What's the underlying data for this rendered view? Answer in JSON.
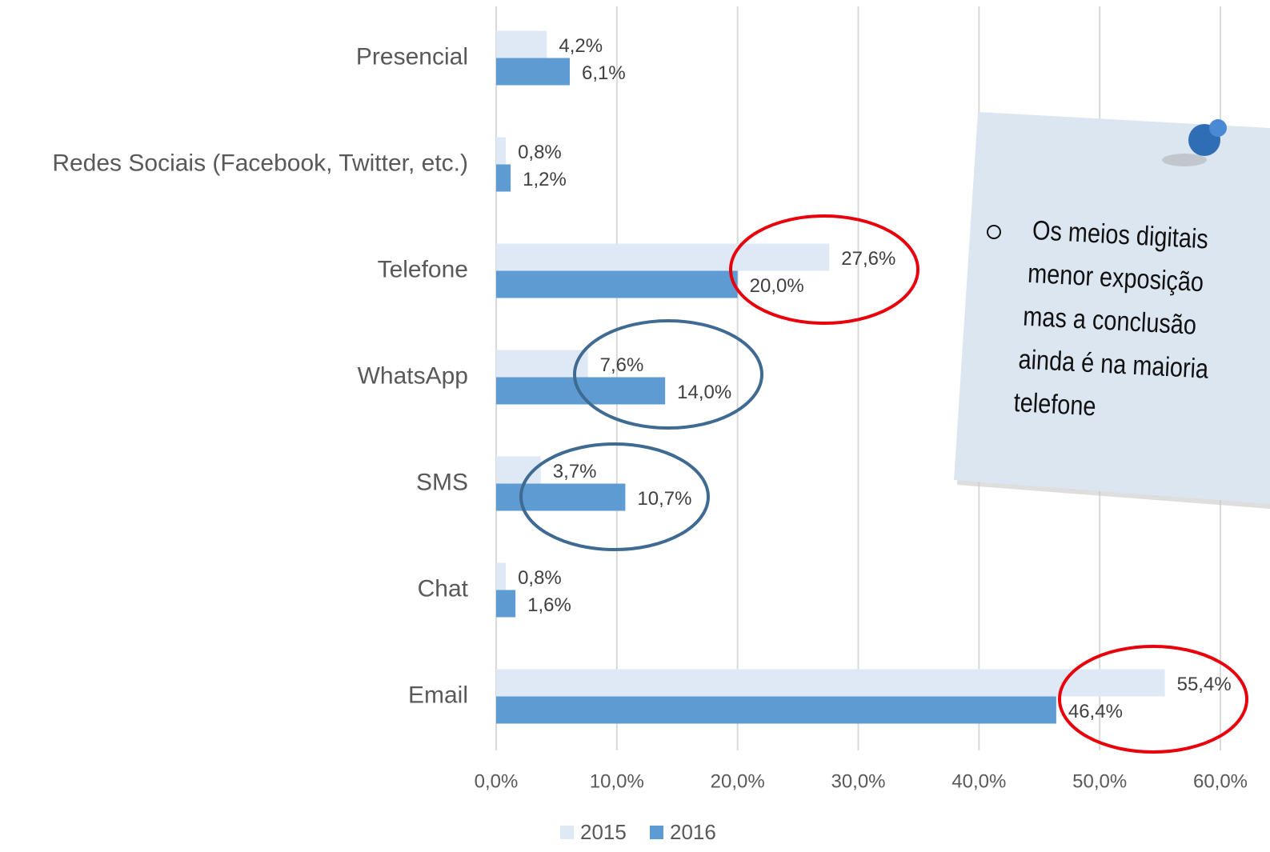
{
  "chart_data": {
    "type": "bar",
    "orientation": "horizontal",
    "categories": [
      "Presencial",
      "Redes Sociais (Facebook, Twitter, etc.)",
      "Telefone",
      "WhatsApp",
      "SMS",
      "Chat",
      "Email"
    ],
    "series": [
      {
        "name": "2015",
        "color": "#dfe9f5",
        "values": [
          4.2,
          0.8,
          27.6,
          7.6,
          3.7,
          0.8,
          55.4
        ],
        "value_labels": [
          "4,2%",
          "0,8%",
          "27,6%",
          "7,6%",
          "3,7%",
          "0,8%",
          "55,4%"
        ]
      },
      {
        "name": "2016",
        "color": "#5e9bd2",
        "values": [
          6.1,
          1.2,
          20.0,
          14.0,
          10.7,
          1.6,
          46.4
        ],
        "value_labels": [
          "6,1%",
          "1,2%",
          "20,0%",
          "14,0%",
          "10,7%",
          "1,6%",
          "46,4%"
        ]
      }
    ],
    "xlim": [
      0,
      60
    ],
    "xticks": [
      {
        "value": 0,
        "label": "0,0%"
      },
      {
        "value": 10,
        "label": "10,0%"
      },
      {
        "value": 20,
        "label": "20,0%"
      },
      {
        "value": 30,
        "label": "30,0%"
      },
      {
        "value": 40,
        "label": "40,0%"
      },
      {
        "value": 50,
        "label": "50,0%"
      },
      {
        "value": 60,
        "label": "60,0%"
      }
    ],
    "grid": true,
    "legend": "bottom",
    "annotation": [
      "Os meios digitais",
      "menor exposição",
      "mas a conclusão",
      "ainda é na maioria",
      "telefone"
    ]
  }
}
